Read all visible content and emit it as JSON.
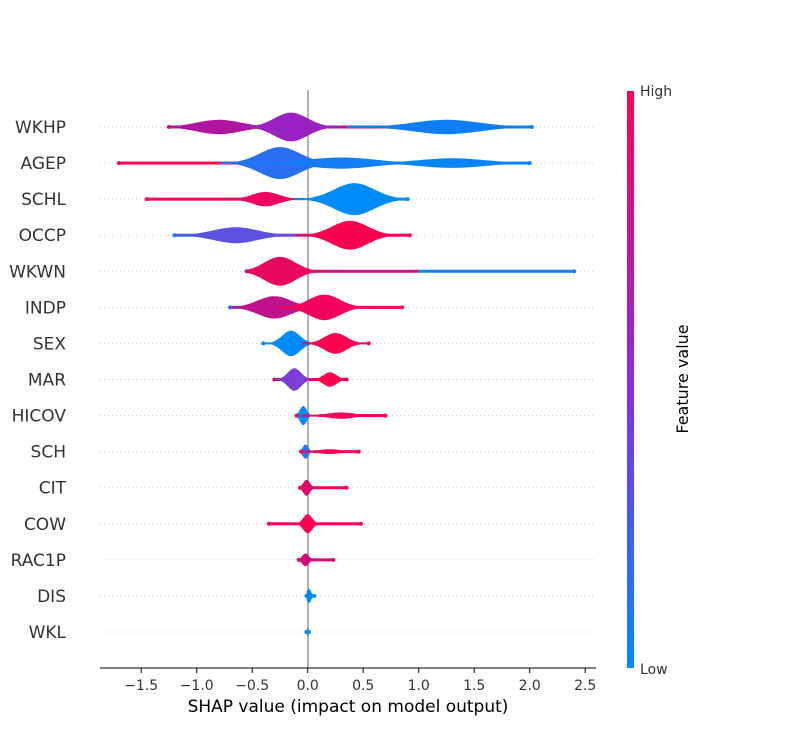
{
  "chart_data": {
    "type": "violin",
    "xlabel": "SHAP value (impact on model output)",
    "xlim": [
      -1.88,
      2.6
    ],
    "xticks": [
      "-1.5",
      "-1.0",
      "-0.5",
      "0.0",
      "0.5",
      "1.0",
      "1.5",
      "2.0",
      "2.5"
    ],
    "xtick_values": [
      -1.5,
      -1.0,
      -0.5,
      0.0,
      0.5,
      1.0,
      1.5,
      2.0,
      2.5
    ],
    "grid": "dotted horizontal per feature",
    "colorbar": {
      "label": "Feature value",
      "high": "High",
      "low": "Low",
      "low_color": "#008bfb",
      "mid_color": "#8a2be2",
      "high_color": "#ff0052"
    },
    "features": [
      {
        "name": "WKHP",
        "min": -1.25,
        "max": 2.02,
        "components": [
          {
            "mu": -0.8,
            "sd": 0.2,
            "h": 0.45,
            "color": "#b0159e"
          },
          {
            "mu": -0.15,
            "sd": 0.15,
            "h": 0.9,
            "color": "#9a22c0"
          },
          {
            "mu": 1.25,
            "sd": 0.3,
            "h": 0.45,
            "color": "#0f7ef5"
          }
        ],
        "tails": [
          {
            "from": -1.25,
            "to": -0.9,
            "color": "#e0066a"
          },
          {
            "from": 0.05,
            "to": 1.0,
            "color": "#c0108a"
          },
          {
            "from": 1.0,
            "to": 2.02,
            "color": "#0a85f8"
          }
        ]
      },
      {
        "name": "AGEP",
        "min": -1.7,
        "max": 2.0,
        "components": [
          {
            "mu": -0.25,
            "sd": 0.18,
            "h": 1.0,
            "color": "#2a6ff0"
          },
          {
            "mu": 0.3,
            "sd": 0.3,
            "h": 0.35,
            "color": "#137df5"
          },
          {
            "mu": 1.3,
            "sd": 0.3,
            "h": 0.3,
            "color": "#0a85f8"
          }
        ],
        "tails": [
          {
            "from": -1.7,
            "to": -0.6,
            "color": "#ff0052"
          },
          {
            "from": 0.3,
            "to": 2.0,
            "color": "#0a85f8"
          }
        ]
      },
      {
        "name": "SCHL",
        "min": -1.45,
        "max": 0.9,
        "components": [
          {
            "mu": -0.38,
            "sd": 0.12,
            "h": 0.45,
            "color": "#f0035e"
          },
          {
            "mu": 0.42,
            "sd": 0.18,
            "h": 1.0,
            "color": "#008bfb"
          }
        ],
        "tails": [
          {
            "from": -1.45,
            "to": -0.5,
            "color": "#ff0052"
          },
          {
            "from": 0.7,
            "to": 0.9,
            "color": "#008bfb"
          }
        ]
      },
      {
        "name": "OCCP",
        "min": -1.2,
        "max": 0.92,
        "components": [
          {
            "mu": -0.65,
            "sd": 0.2,
            "h": 0.5,
            "color": "#5d52e0"
          },
          {
            "mu": 0.38,
            "sd": 0.16,
            "h": 0.9,
            "color": "#f8024f"
          }
        ],
        "tails": [
          {
            "from": -1.2,
            "to": -0.8,
            "color": "#1a7cf3"
          },
          {
            "from": -0.5,
            "to": 0.2,
            "color": "#a01ab0"
          },
          {
            "from": 0.5,
            "to": 0.92,
            "color": "#ff0052"
          }
        ]
      },
      {
        "name": "WKWN",
        "min": -0.55,
        "max": 2.4,
        "components": [
          {
            "mu": -0.25,
            "sd": 0.14,
            "h": 0.9,
            "color": "#e8085e"
          }
        ],
        "tails": [
          {
            "from": -0.55,
            "to": 1.0,
            "color": "#c8107f"
          },
          {
            "from": 1.0,
            "to": 2.4,
            "color": "#0a85f8"
          }
        ]
      },
      {
        "name": "INDP",
        "min": -0.7,
        "max": 0.85,
        "components": [
          {
            "mu": -0.3,
            "sd": 0.15,
            "h": 0.7,
            "color": "#c0128c"
          },
          {
            "mu": 0.15,
            "sd": 0.14,
            "h": 0.8,
            "color": "#f2045c"
          }
        ],
        "tails": [
          {
            "from": -0.7,
            "to": -0.45,
            "color": "#3d67ea"
          },
          {
            "from": 0.3,
            "to": 0.85,
            "color": "#ff0052"
          }
        ]
      },
      {
        "name": "SEX",
        "min": -0.4,
        "max": 0.55,
        "components": [
          {
            "mu": -0.15,
            "sd": 0.08,
            "h": 0.8,
            "color": "#008bfb"
          },
          {
            "mu": 0.25,
            "sd": 0.1,
            "h": 0.65,
            "color": "#ff0052"
          }
        ],
        "tails": []
      },
      {
        "name": "MAR",
        "min": -0.3,
        "max": 0.35,
        "components": [
          {
            "mu": -0.12,
            "sd": 0.06,
            "h": 0.7,
            "color": "#7a3fd6"
          },
          {
            "mu": 0.2,
            "sd": 0.06,
            "h": 0.45,
            "color": "#ff0052"
          }
        ],
        "tails": [
          {
            "from": -0.3,
            "to": 0.35,
            "color": "#e0066a"
          }
        ]
      },
      {
        "name": "HICOV",
        "min": -0.1,
        "max": 0.7,
        "components": [
          {
            "mu": -0.04,
            "sd": 0.03,
            "h": 0.6,
            "color": "#008bfb"
          },
          {
            "mu": 0.3,
            "sd": 0.12,
            "h": 0.2,
            "color": "#ff0052"
          }
        ],
        "tails": [
          {
            "from": 0.1,
            "to": 0.7,
            "color": "#ff0052"
          }
        ]
      },
      {
        "name": "SCH",
        "min": -0.06,
        "max": 0.46,
        "components": [
          {
            "mu": -0.02,
            "sd": 0.025,
            "h": 0.45,
            "color": "#1a7cf3"
          },
          {
            "mu": 0.2,
            "sd": 0.1,
            "h": 0.15,
            "color": "#ff0052"
          }
        ],
        "tails": [
          {
            "from": 0.05,
            "to": 0.46,
            "color": "#ff0052"
          }
        ]
      },
      {
        "name": "CIT",
        "min": -0.07,
        "max": 0.35,
        "components": [
          {
            "mu": -0.01,
            "sd": 0.03,
            "h": 0.5,
            "color": "#e0066a"
          }
        ],
        "tails": [
          {
            "from": 0.02,
            "to": 0.35,
            "color": "#ff0052"
          }
        ]
      },
      {
        "name": "COW",
        "min": -0.35,
        "max": 0.48,
        "components": [
          {
            "mu": 0.0,
            "sd": 0.04,
            "h": 0.6,
            "color": "#ff0052"
          }
        ],
        "tails": [
          {
            "from": -0.35,
            "to": 0.48,
            "color": "#ff0052"
          }
        ]
      },
      {
        "name": "RAC1P",
        "min": -0.08,
        "max": 0.23,
        "components": [
          {
            "mu": -0.02,
            "sd": 0.03,
            "h": 0.4,
            "color": "#d00a75"
          }
        ],
        "tails": [
          {
            "from": 0.0,
            "to": 0.23,
            "color": "#e0066a"
          }
        ]
      },
      {
        "name": "DIS",
        "min": -0.01,
        "max": 0.06,
        "components": [
          {
            "mu": 0.01,
            "sd": 0.02,
            "h": 0.45,
            "color": "#008bfb"
          }
        ],
        "tails": []
      },
      {
        "name": "WKL",
        "min": -0.01,
        "max": 0.01,
        "components": [
          {
            "mu": 0.0,
            "sd": 0.006,
            "h": 0.3,
            "color": "#008bfb"
          }
        ],
        "tails": [
          {
            "from": 0.0,
            "to": 0.01,
            "color": "#008bfb"
          }
        ]
      }
    ]
  }
}
